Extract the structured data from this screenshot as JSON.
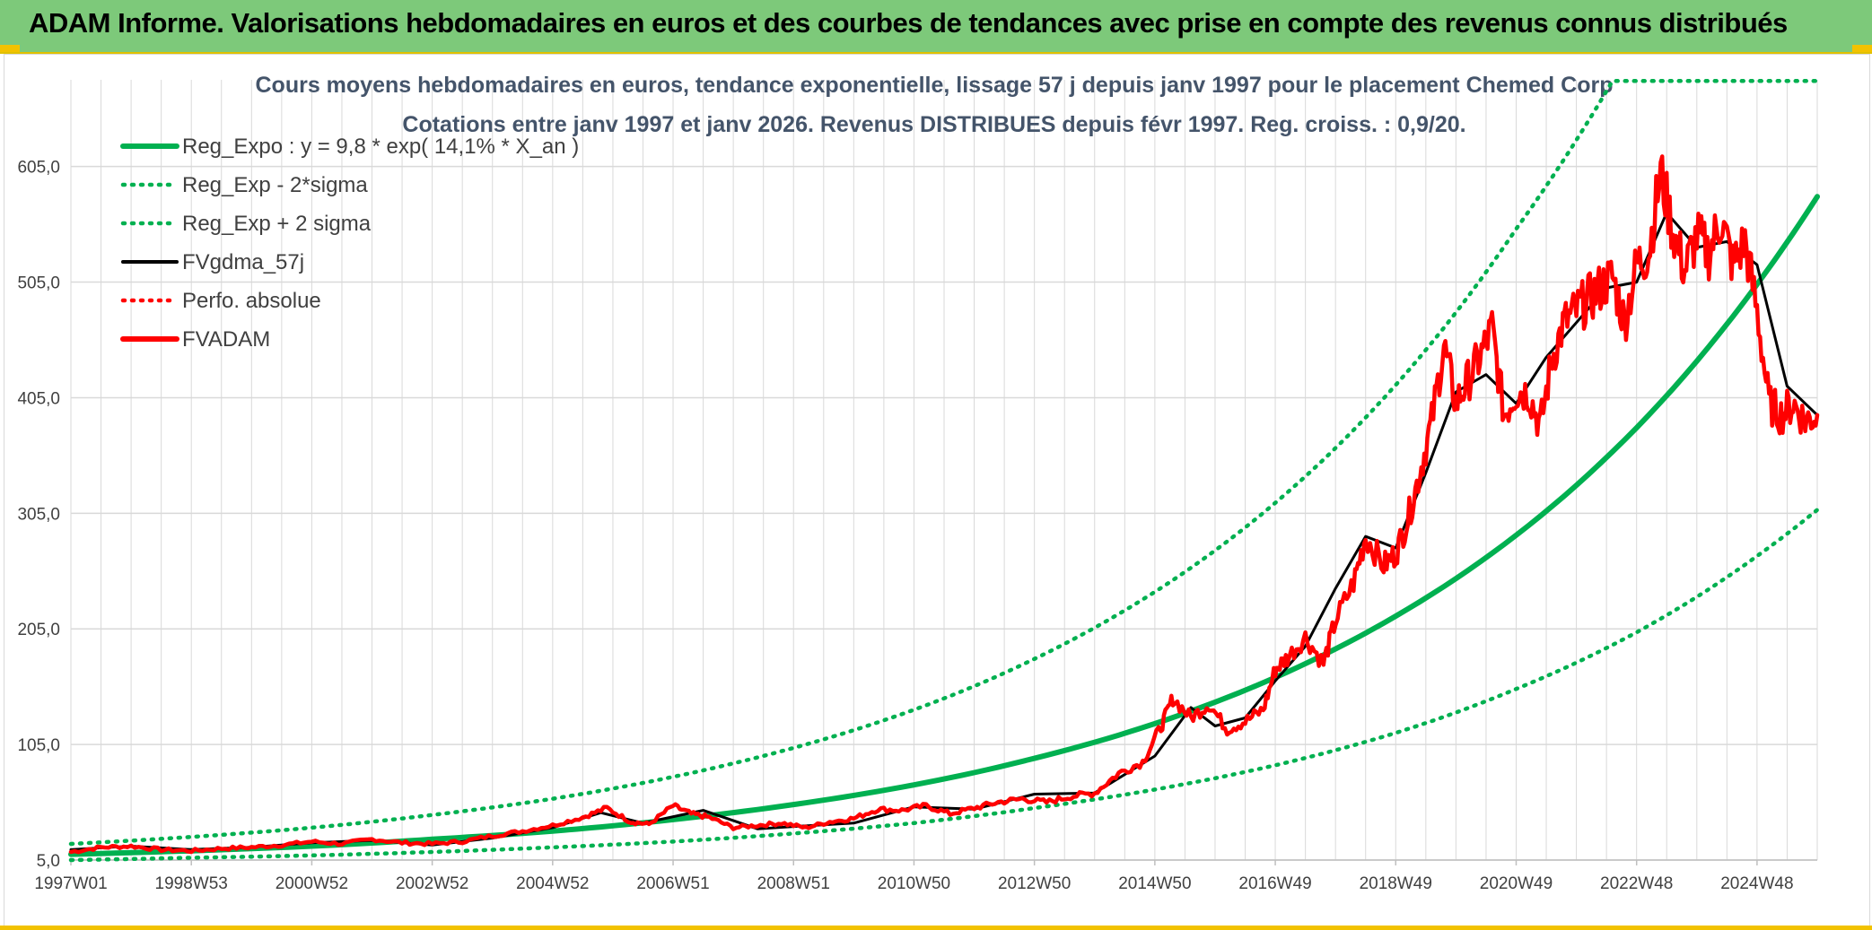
{
  "banner": {
    "title": "ADAM Informe. Valorisations hebdomadaires en euros et des courbes de tendances avec prise en compte des revenus connus distribués"
  },
  "colors": {
    "banner_bg": "#7dc97a",
    "reg_green": "#00b050",
    "fvgdma_black": "#000000",
    "perfo_red": "#ff0000",
    "fvadam_red": "#ff0000",
    "gridline": "#d9d9d9",
    "title_color": "#44546a"
  },
  "chart_data": {
    "type": "line",
    "title_line1": "Cours moyens hebdomadaires en euros, tendance exponentielle, lissage 57 j depuis janv 1997 pour le placement Chemed Corp",
    "title_line2": "Cotations entre janv 1997 et janv 2026. Revenus DISTRIBUES depuis févr 1997. Reg. croiss. : 0,9/20.",
    "xlabel": "",
    "ylabel": "",
    "ylim": [
      5,
      680
    ],
    "y_ticks": [
      5,
      105,
      205,
      305,
      405,
      505,
      605
    ],
    "y_tick_labels": [
      "5,0",
      "105,0",
      "205,0",
      "305,0",
      "405,0",
      "505,0",
      "605,0"
    ],
    "x_range": [
      1997.0,
      2026.0
    ],
    "x_ticks": [
      1997.0,
      1999.0,
      2001.0,
      2003.0,
      2005.0,
      2007.0,
      2009.0,
      2011.0,
      2013.0,
      2015.0,
      2017.0,
      2019.0,
      2021.0,
      2023.0,
      2025.0
    ],
    "x_tick_labels": [
      "1997W01",
      "1998W53",
      "2000W52",
      "2002W52",
      "2004W52",
      "2006W51",
      "2008W51",
      "2010W50",
      "2012W50",
      "2014W50",
      "2016W49",
      "2018W49",
      "2020W49",
      "2022W48",
      "2024W48"
    ],
    "legend": [
      {
        "label": "Reg_Expo : y = 9,8 * exp( 14,1% *  X_an )",
        "color": "#00b050",
        "style": "solid-thick"
      },
      {
        "label": "Reg_Exp - 2*sigma",
        "color": "#00b050",
        "style": "dotted"
      },
      {
        "label": "Reg_Exp + 2 sigma",
        "color": "#00b050",
        "style": "dotted"
      },
      {
        "label": "FVgdma_57j",
        "color": "#000000",
        "style": "solid"
      },
      {
        "label": "Perfo. absolue",
        "color": "#ff0000",
        "style": "dotted"
      },
      {
        "label": "FVADAM",
        "color": "#ff0000",
        "style": "solid-thick"
      }
    ],
    "legend_position": "top-left",
    "series": [
      {
        "name": "Reg_Expo : y = 9,8 * exp( 14,1% *  X_an )",
        "x": [
          1997.0,
          1999.0,
          2001.0,
          2003.0,
          2005.0,
          2007.0,
          2009.0,
          2011.0,
          2013.0,
          2015.0,
          2017.0,
          2019.0,
          2021.0,
          2023.0,
          2025.0,
          2026.0
        ],
        "values": [
          10,
          13,
          17,
          23,
          30,
          40,
          53,
          70,
          93,
          123,
          163,
          216,
          286,
          379,
          503,
          579
        ]
      },
      {
        "name": "Reg_Exp - 2*sigma",
        "x": [
          1997.0,
          1999.0,
          2001.0,
          2003.0,
          2005.0,
          2007.0,
          2009.0,
          2011.0,
          2013.0,
          2015.0,
          2017.0,
          2019.0,
          2021.0,
          2023.0,
          2025.0,
          2026.0
        ],
        "values": [
          5,
          7,
          9,
          12,
          16,
          21,
          28,
          37,
          50,
          66,
          87,
          115,
          153,
          202,
          268,
          308
        ]
      },
      {
        "name": "Reg_Exp + 2 sigma",
        "x": [
          1997.0,
          1999.0,
          2001.0,
          2003.0,
          2005.0,
          2007.0,
          2009.0,
          2011.0,
          2013.0,
          2015.0,
          2017.0,
          2019.0,
          2021.0,
          2022.6,
          2023.0,
          2025.0,
          2026.0
        ],
        "values": [
          19,
          25,
          33,
          44,
          58,
          77,
          102,
          135,
          179,
          237,
          314,
          416,
          551,
          679,
          679,
          679,
          679
        ]
      },
      {
        "name": "FVgdma_57j",
        "x": [
          1997.0,
          1998.0,
          1999.0,
          2000.0,
          2001.0,
          2002.0,
          2003.0,
          2004.0,
          2005.0,
          2005.8,
          2006.5,
          2007.5,
          2008.4,
          2009.0,
          2010.0,
          2011.0,
          2012.0,
          2013.0,
          2014.0,
          2015.0,
          2015.6,
          2016.0,
          2016.5,
          2017.0,
          2017.5,
          2018.0,
          2018.5,
          2019.0,
          2019.5,
          2020.0,
          2020.5,
          2021.0,
          2021.5,
          2022.0,
          2022.5,
          2023.0,
          2023.5,
          2024.0,
          2024.5,
          2025.0,
          2025.5,
          2026.0
        ],
        "values": [
          14,
          17,
          14,
          16,
          20,
          22,
          18,
          24,
          33,
          46,
          37,
          48,
          32,
          34,
          37,
          51,
          49,
          62,
          63,
          95,
          137,
          121,
          128,
          160,
          190,
          240,
          285,
          275,
          340,
          410,
          425,
          400,
          440,
          470,
          500,
          505,
          565,
          535,
          540,
          520,
          415,
          390
        ]
      },
      {
        "name": "Perfo. absolue",
        "x": [],
        "values": []
      },
      {
        "name": "FVADAM",
        "x": [
          1997.0,
          1997.5,
          1998.0,
          1998.5,
          1999.0,
          1999.5,
          2000.0,
          2000.5,
          2001.0,
          2001.5,
          2002.0,
          2002.5,
          2003.0,
          2003.5,
          2004.0,
          2004.5,
          2005.0,
          2005.5,
          2005.9,
          2006.3,
          2006.6,
          2007.0,
          2007.3,
          2007.6,
          2008.0,
          2008.4,
          2008.8,
          2009.2,
          2009.6,
          2010.0,
          2010.4,
          2010.8,
          2011.2,
          2011.6,
          2012.0,
          2012.4,
          2012.8,
          2013.2,
          2013.6,
          2014.0,
          2014.4,
          2014.8,
          2015.1,
          2015.3,
          2015.6,
          2015.9,
          2016.2,
          2016.5,
          2016.8,
          2017.0,
          2017.2,
          2017.5,
          2017.8,
          2018.0,
          2018.3,
          2018.5,
          2018.8,
          2019.0,
          2019.2,
          2019.4,
          2019.6,
          2019.8,
          2020.0,
          2020.2,
          2020.4,
          2020.6,
          2020.8,
          2021.0,
          2021.2,
          2021.4,
          2021.6,
          2021.8,
          2022.0,
          2022.2,
          2022.4,
          2022.6,
          2022.8,
          2023.0,
          2023.2,
          2023.4,
          2023.6,
          2023.8,
          2024.0,
          2024.2,
          2024.4,
          2024.6,
          2024.8,
          2025.0,
          2025.2,
          2025.4,
          2025.6,
          2025.8,
          2026.0
        ],
        "values": [
          12,
          16,
          17,
          14,
          13,
          15,
          16,
          18,
          21,
          19,
          23,
          20,
          19,
          21,
          26,
          30,
          35,
          42,
          50,
          38,
          36,
          52,
          45,
          42,
          33,
          35,
          37,
          33,
          38,
          41,
          49,
          48,
          52,
          45,
          50,
          55,
          58,
          55,
          60,
          63,
          80,
          90,
          120,
          145,
          128,
          140,
          118,
          125,
          135,
          170,
          180,
          198,
          175,
          212,
          245,
          285,
          260,
          270,
          300,
          340,
          385,
          450,
          400,
          420,
          440,
          465,
          390,
          410,
          410,
          380,
          440,
          470,
          480,
          490,
          500,
          510,
          470,
          520,
          530,
          600,
          550,
          515,
          545,
          530,
          560,
          520,
          540,
          480,
          400,
          390,
          400,
          385,
          390
        ]
      }
    ]
  }
}
